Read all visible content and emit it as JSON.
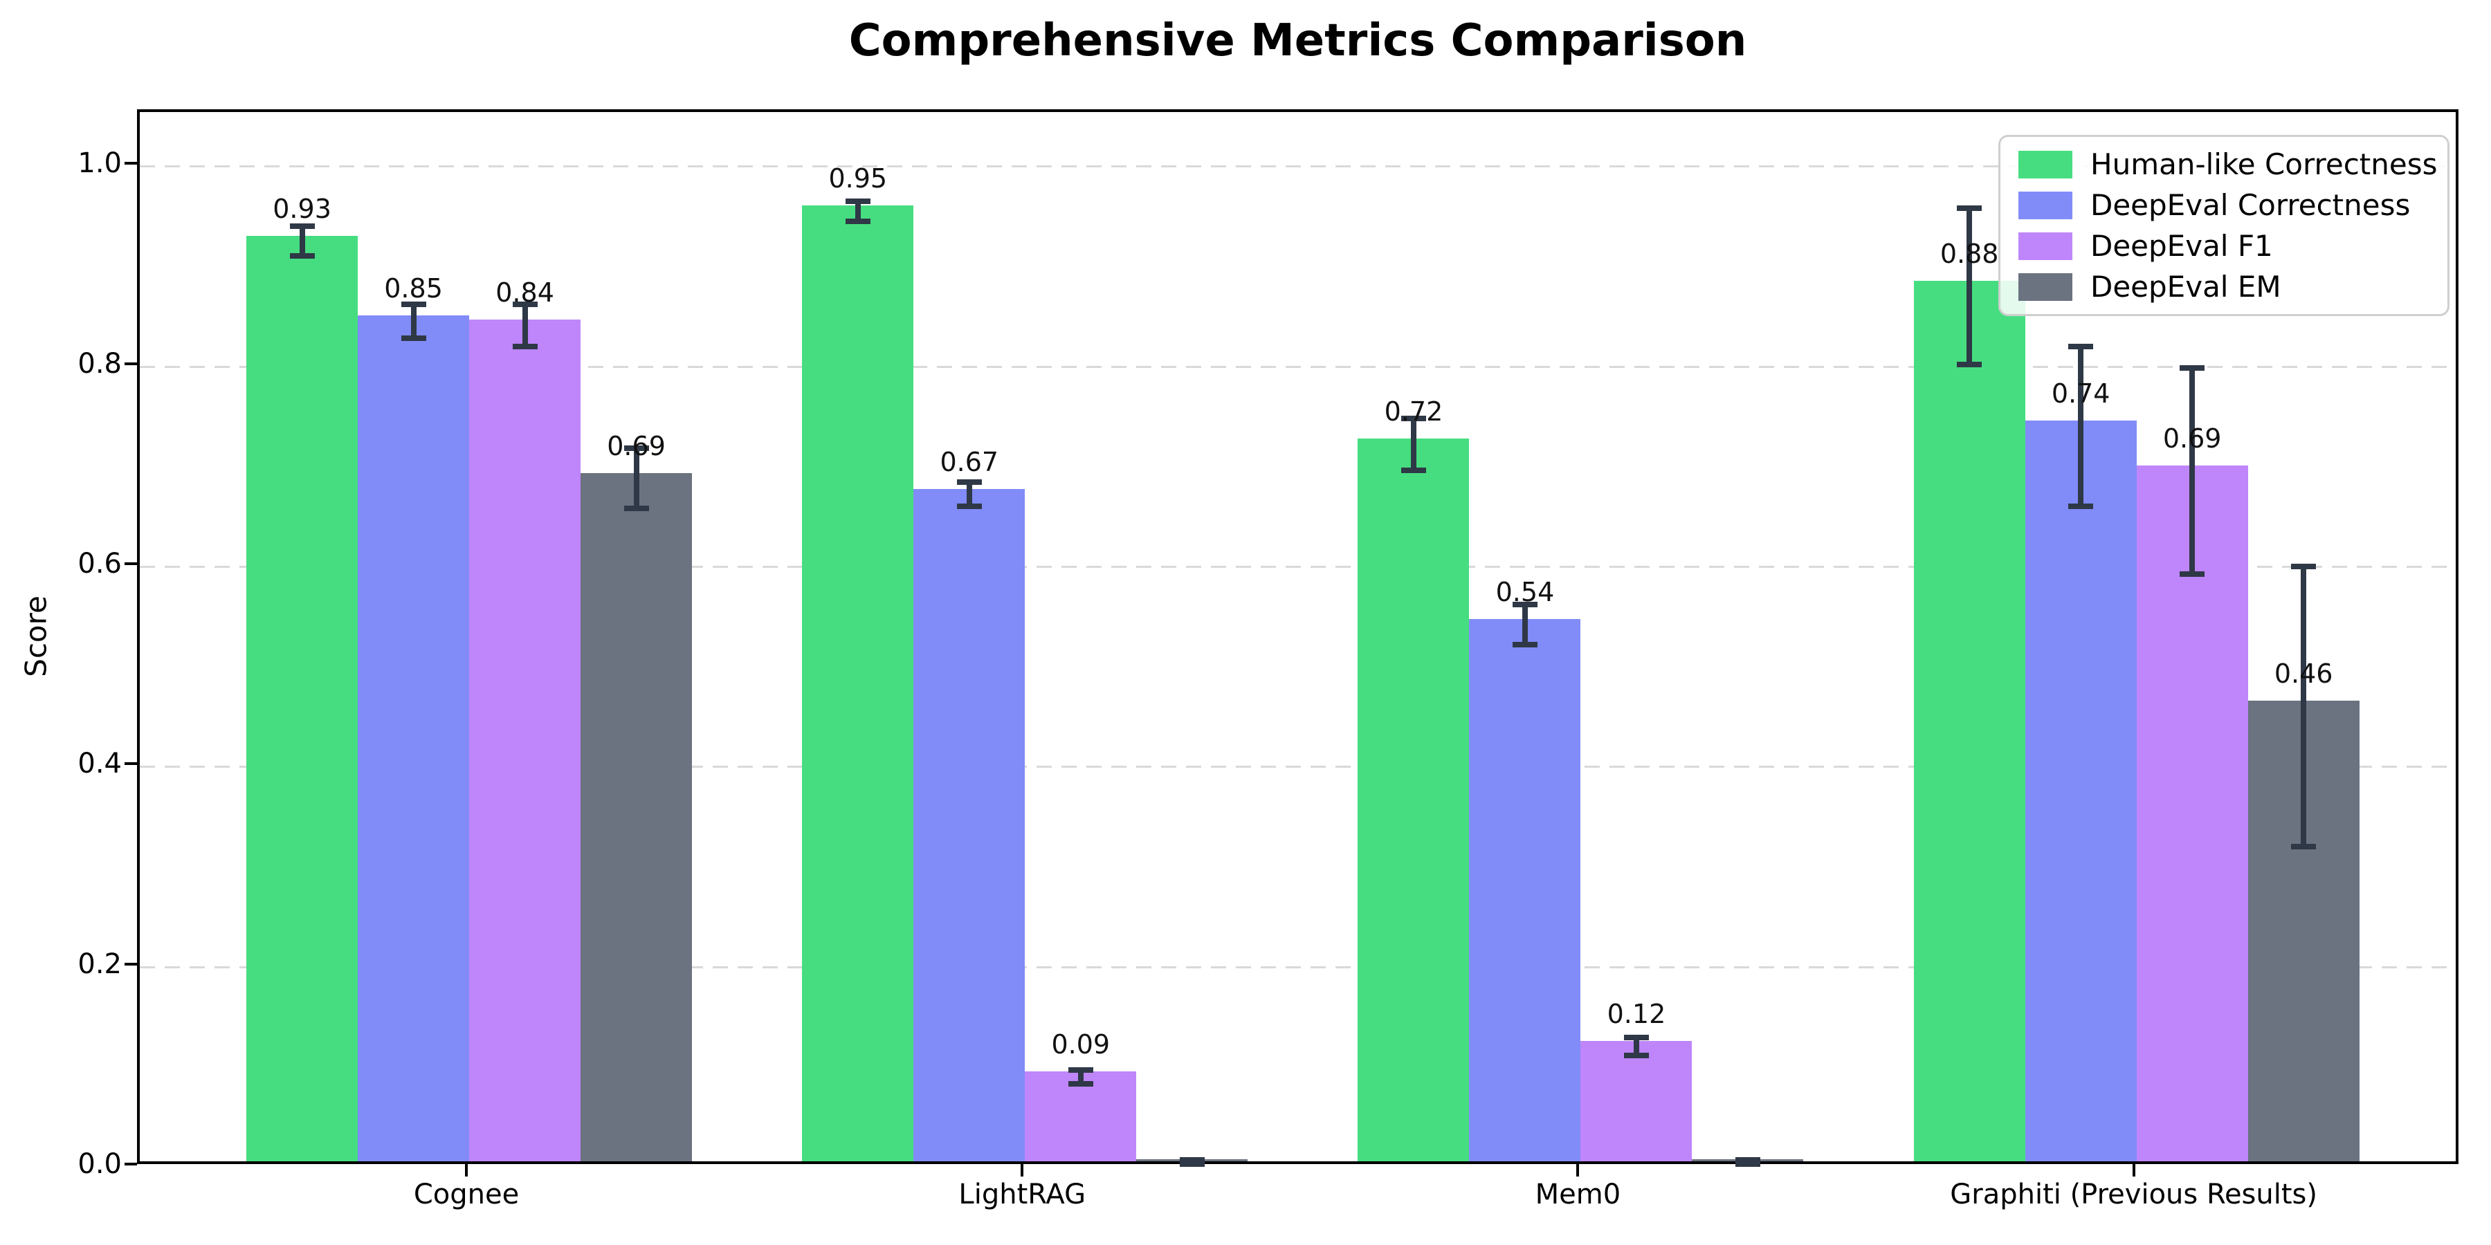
{
  "figure": {
    "title": "Comprehensive Metrics Comparison",
    "background": "#ffffff"
  },
  "chart_data": {
    "type": "bar",
    "title": "Comprehensive Metrics Comparison",
    "xlabel": "",
    "ylabel": "Score",
    "categories": [
      "Cognee",
      "LightRAG",
      "Mem0",
      "Graphiti (Previous Results)"
    ],
    "series": [
      {
        "name": "Human-like Correctness",
        "color": "#46dd80",
        "values": [
          0.925,
          0.955,
          0.722,
          0.88
        ],
        "errors": [
          0.015,
          0.01,
          0.026,
          0.078
        ],
        "labels": [
          "0.93",
          "0.95",
          "0.72",
          "0.88"
        ]
      },
      {
        "name": "DeepEval Correctness",
        "color": "#818cf8",
        "values": [
          0.845,
          0.672,
          0.542,
          0.74
        ],
        "errors": [
          0.017,
          0.012,
          0.02,
          0.08
        ],
        "labels": [
          "0.85",
          "0.67",
          "0.54",
          "0.74"
        ]
      },
      {
        "name": "DeepEval F1",
        "color": "#be86fa",
        "values": [
          0.841,
          0.09,
          0.12,
          0.695
        ],
        "errors": [
          0.021,
          0.007,
          0.009,
          0.103
        ],
        "labels": [
          "0.84",
          "0.09",
          "0.12",
          "0.69"
        ]
      },
      {
        "name": "DeepEval EM",
        "color": "#6b7280",
        "values": [
          0.688,
          0.002,
          0.002,
          0.46
        ],
        "errors": [
          0.03,
          0.005,
          0.005,
          0.14
        ],
        "labels": [
          "0.69",
          "",
          "",
          "0.46"
        ]
      }
    ],
    "yticks_labels": [
      "0.0",
      "0.2",
      "0.4",
      "0.6",
      "0.8",
      "1.0"
    ],
    "yticks_values": [
      0,
      0.2,
      0.4,
      0.6,
      0.8,
      1.0
    ],
    "ylim": [
      0,
      1.054
    ],
    "grid": "horizontal dashed",
    "grid_color": "#d9d9d9",
    "legend_position": "upper right",
    "errorbar_color": "#2f3846",
    "axis_color": "#000000"
  }
}
